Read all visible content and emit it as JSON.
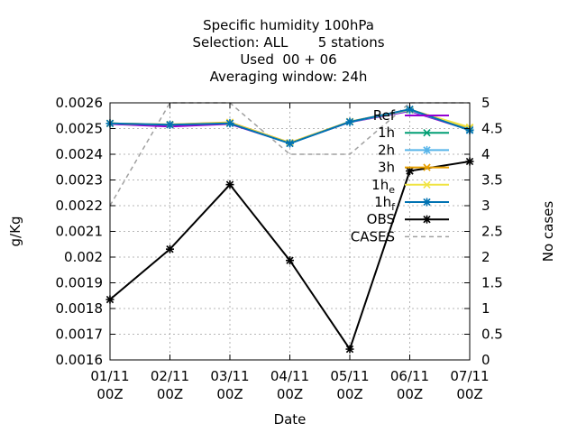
{
  "chart_data": {
    "type": "line",
    "title_lines": [
      "Specific humidity 100hPa",
      "Selection: ALL       5 stations",
      "Used  00 + 06",
      "Averaging window: 24h"
    ],
    "xlabel": "Date",
    "ylabel": "g/Kg",
    "y2label": "No cases",
    "categories": [
      "01/11\n00Z",
      "02/11\n00Z",
      "03/11\n00Z",
      "04/11\n00Z",
      "05/11\n00Z",
      "06/11\n00Z",
      "07/11\n00Z"
    ],
    "ylim": [
      0.0016,
      0.0026
    ],
    "yticks": [
      "0.0016",
      "0.0017",
      "0.0018",
      "0.0019",
      "0.002",
      "0.0021",
      "0.0022",
      "0.0023",
      "0.0024",
      "0.0025",
      "0.0026"
    ],
    "y2lim": [
      0,
      5
    ],
    "y2ticks": [
      "0",
      "0.5",
      "1",
      "1.5",
      "2",
      "2.5",
      "3",
      "3.5",
      "4",
      "4.5",
      "5"
    ],
    "grid": true,
    "legend_position": "top-right",
    "series": [
      {
        "name": "Ref",
        "color": "#9400d3",
        "marker": "none",
        "axis": "y1",
        "values": [
          0.002518,
          0.002508,
          0.002518,
          0.002443,
          0.002525,
          0.002568,
          0.002495
        ]
      },
      {
        "name": "1h",
        "color": "#009e73",
        "marker": "x",
        "axis": "y1",
        "values": [
          0.00252,
          0.002515,
          0.002522,
          0.002444,
          0.002526,
          0.002572,
          0.002497
        ]
      },
      {
        "name": "2h",
        "color": "#56b4e9",
        "marker": "star",
        "axis": "y1",
        "values": [
          0.00252,
          0.002515,
          0.002522,
          0.002444,
          0.002526,
          0.002571,
          0.002497
        ]
      },
      {
        "name": "3h",
        "color": "#e69f00",
        "marker": "x",
        "axis": "y1",
        "values": [
          0.00252,
          0.002516,
          0.002524,
          0.002445,
          0.002527,
          0.002574,
          0.002503
        ]
      },
      {
        "name": "1h",
        "sub": "e",
        "color": "#f0e442",
        "marker": "x",
        "axis": "y1",
        "values": [
          0.00252,
          0.002516,
          0.002523,
          0.002444,
          0.002527,
          0.002573,
          0.002505
        ]
      },
      {
        "name": "1h",
        "sub": "f",
        "color": "#0072b2",
        "marker": "star",
        "axis": "y1",
        "values": [
          0.00252,
          0.002515,
          0.00252,
          0.002442,
          0.002526,
          0.002575,
          0.002493
        ]
      },
      {
        "name": "OBS",
        "color": "#000000",
        "marker": "star",
        "axis": "y1",
        "values": [
          0.001835,
          0.002031,
          0.002282,
          0.001987,
          0.001642,
          0.002335,
          0.002372
        ]
      },
      {
        "name": "CASES",
        "color": "#a0a0a0",
        "marker": "none",
        "dash": true,
        "axis": "y2",
        "values": [
          3,
          5,
          5,
          4,
          4,
          5,
          5
        ]
      }
    ]
  }
}
